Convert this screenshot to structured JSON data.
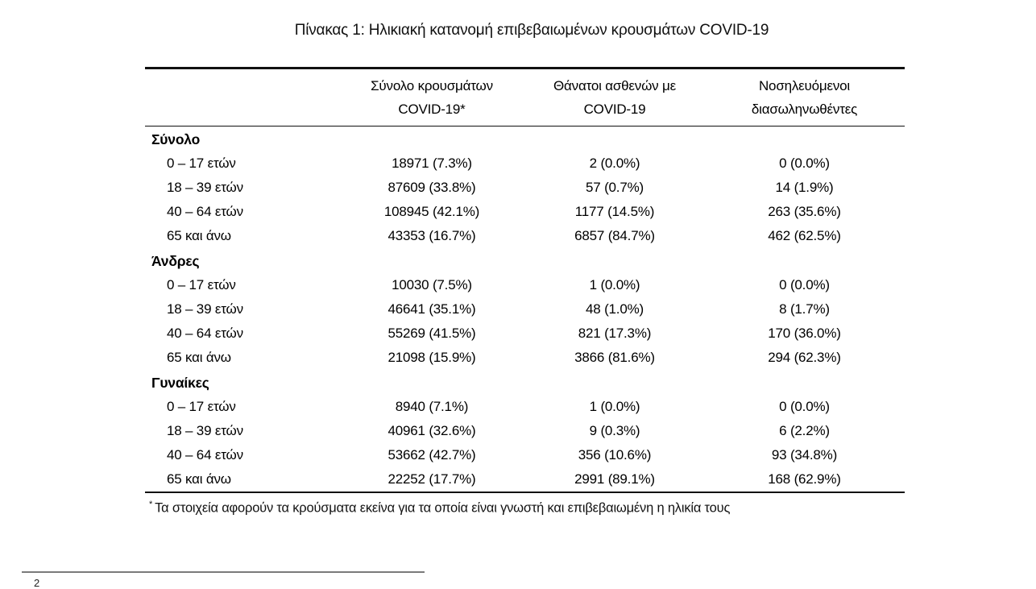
{
  "page": {
    "title": "Πίνακας 1: Ηλικιακή κατανομή επιβεβαιωμένων κρουσμάτων COVID-19"
  },
  "colors": {
    "text": "#000000",
    "table_rule": "#111111",
    "footer_rule": "#7a7a7a",
    "background": "#ffffff"
  },
  "table": {
    "columns": [
      {
        "line1": "Σύνολο κρουσμάτων",
        "line2": "COVID-19*"
      },
      {
        "line1": "Θάνατοι ασθενών με",
        "line2": "COVID-19"
      },
      {
        "line1": "Νοσηλευόμενοι",
        "line2": "διασωληνωθέντες"
      }
    ],
    "groups": [
      {
        "label": "Σύνολο",
        "rows": [
          {
            "age": "0 – 17 ετών",
            "cases": "18971 (7.3%)",
            "deaths": "2 (0.0%)",
            "intubated": "0 (0.0%)"
          },
          {
            "age": "18 – 39 ετών",
            "cases": "87609 (33.8%)",
            "deaths": "57 (0.7%)",
            "intubated": "14 (1.9%)"
          },
          {
            "age": "40 – 64 ετών",
            "cases": "108945 (42.1%)",
            "deaths": "1177 (14.5%)",
            "intubated": "263 (35.6%)"
          },
          {
            "age": "65 και άνω",
            "cases": "43353 (16.7%)",
            "deaths": "6857 (84.7%)",
            "intubated": "462 (62.5%)"
          }
        ]
      },
      {
        "label": "Άνδρες",
        "rows": [
          {
            "age": "0 – 17 ετών",
            "cases": "10030 (7.5%)",
            "deaths": "1 (0.0%)",
            "intubated": "0 (0.0%)"
          },
          {
            "age": "18 – 39 ετών",
            "cases": "46641 (35.1%)",
            "deaths": "48 (1.0%)",
            "intubated": "8 (1.7%)"
          },
          {
            "age": "40 – 64 ετών",
            "cases": "55269 (41.5%)",
            "deaths": "821 (17.3%)",
            "intubated": "170 (36.0%)"
          },
          {
            "age": "65 και άνω",
            "cases": "21098 (15.9%)",
            "deaths": "3866 (81.6%)",
            "intubated": "294 (62.3%)"
          }
        ]
      },
      {
        "label": "Γυναίκες",
        "rows": [
          {
            "age": "0 – 17 ετών",
            "cases": "8940 (7.1%)",
            "deaths": "1 (0.0%)",
            "intubated": "0 (0.0%)"
          },
          {
            "age": "18 – 39 ετών",
            "cases": "40961 (32.6%)",
            "deaths": "9 (0.3%)",
            "intubated": "6 (2.2%)"
          },
          {
            "age": "40 – 64 ετών",
            "cases": "53662 (42.7%)",
            "deaths": "356 (10.6%)",
            "intubated": "93 (34.8%)"
          },
          {
            "age": "65 και άνω",
            "cases": "22252 (17.7%)",
            "deaths": "2991 (89.1%)",
            "intubated": "168 (62.9%)"
          }
        ]
      }
    ],
    "footnote": {
      "marker": "*",
      "text": "Τα στοιχεία αφορούν τα κρούσματα εκείνα για τα οποία είναι γνωστή και επιβεβαιωμένη η ηλικία τους"
    }
  },
  "page_footer": {
    "footnote_marker": "2"
  }
}
